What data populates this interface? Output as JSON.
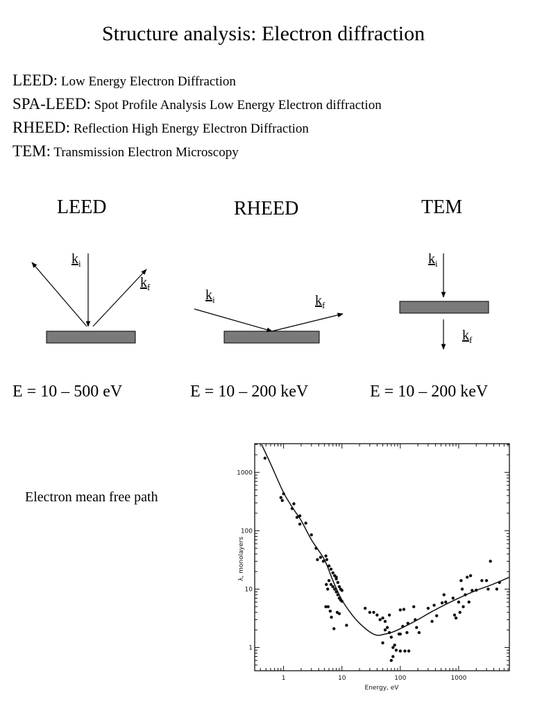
{
  "title": "Structure analysis: Electron diffraction",
  "definitions": [
    {
      "abbr": "LEED",
      "text": "Low Energy Electron Diffraction"
    },
    {
      "abbr": "SPA-LEED",
      "text": "Spot Profile Analysis Low Energy Electron diffraction"
    },
    {
      "abbr": "RHEED",
      "text": "Reflection High Energy Electron Diffraction"
    },
    {
      "abbr": "TEM",
      "text": "Transmission Electron Microscopy"
    }
  ],
  "diagrams": [
    {
      "name": "LEED",
      "ki": "k",
      "ki_sub": "i",
      "kf": "k",
      "kf_sub": "f",
      "energy": "E = 10 – 500 eV"
    },
    {
      "name": "RHEED",
      "ki": "k",
      "ki_sub": "i",
      "kf": "k",
      "kf_sub": "f",
      "energy": "E = 10 – 200 keV"
    },
    {
      "name": "TEM",
      "ki": "k",
      "ki_sub": "i",
      "kf": "k",
      "kf_sub": "f",
      "energy": "E = 10 – 200 keV"
    }
  ],
  "colors": {
    "sample_plate": "#7a7a7a",
    "text": "#000000"
  },
  "mfp_label": "Electron mean free path",
  "chart_data": {
    "type": "scatter",
    "xlabel": "Energy, eV",
    "ylabel": "λ, monolayers",
    "xscale": "log",
    "yscale": "log",
    "xlim": [
      0.32,
      7400
    ],
    "ylim": [
      0.4,
      3100
    ],
    "xticks": [
      {
        "value": 1,
        "label": "1"
      },
      {
        "value": 10,
        "label": "10"
      },
      {
        "value": 100,
        "label": "100"
      },
      {
        "value": 1000,
        "label": "1000"
      }
    ],
    "yticks": [
      {
        "value": 1,
        "label": "1"
      },
      {
        "value": 10,
        "label": "10"
      },
      {
        "value": 100,
        "label": "100"
      },
      {
        "value": 1000,
        "label": "1000"
      }
    ],
    "grid": false,
    "curve": [
      [
        0.42,
        3000
      ],
      [
        0.6,
        1400
      ],
      [
        1,
        450
      ],
      [
        1.5,
        230
      ],
      [
        2,
        150
      ],
      [
        3,
        70
      ],
      [
        5,
        32
      ],
      [
        7,
        14
      ],
      [
        10,
        6.5
      ],
      [
        15,
        3.6
      ],
      [
        20,
        2.6
      ],
      [
        30,
        1.85
      ],
      [
        40,
        1.62
      ],
      [
        55,
        1.7
      ],
      [
        70,
        1.8
      ],
      [
        100,
        2.1
      ],
      [
        200,
        3
      ],
      [
        300,
        3.8
      ],
      [
        500,
        5
      ],
      [
        1000,
        7
      ],
      [
        2000,
        9.5
      ],
      [
        3000,
        11
      ],
      [
        5000,
        13.5
      ],
      [
        7400,
        16
      ]
    ],
    "points": [
      [
        0.48,
        1750
      ],
      [
        0.9,
        370
      ],
      [
        0.95,
        330
      ],
      [
        1.0,
        430
      ],
      [
        1.4,
        240
      ],
      [
        1.5,
        290
      ],
      [
        1.7,
        170
      ],
      [
        1.9,
        180
      ],
      [
        1.9,
        130
      ],
      [
        2.4,
        135
      ],
      [
        3.0,
        85
      ],
      [
        3.6,
        50
      ],
      [
        3.8,
        32
      ],
      [
        4.3,
        35
      ],
      [
        4.8,
        30
      ],
      [
        5.3,
        37
      ],
      [
        5.5,
        32
      ],
      [
        5.4,
        12
      ],
      [
        5.7,
        10
      ],
      [
        5.3,
        5
      ],
      [
        5.8,
        5
      ],
      [
        6.3,
        4.2
      ],
      [
        6.6,
        3.3
      ],
      [
        7.3,
        2.1
      ],
      [
        8.3,
        4
      ],
      [
        9,
        3.8
      ],
      [
        12,
        2.4
      ],
      [
        6,
        25
      ],
      [
        6.5,
        22
      ],
      [
        7,
        19
      ],
      [
        7.5,
        17
      ],
      [
        8,
        15
      ],
      [
        8.5,
        13
      ],
      [
        9,
        11
      ],
      [
        9.5,
        10
      ],
      [
        10,
        9.5
      ],
      [
        6,
        14
      ],
      [
        6.5,
        12
      ],
      [
        7,
        11
      ],
      [
        7.5,
        10
      ],
      [
        8,
        9
      ],
      [
        8.5,
        8
      ],
      [
        9,
        7
      ],
      [
        9.5,
        6.5
      ],
      [
        10,
        6.2
      ],
      [
        8,
        16
      ],
      [
        25,
        4.7
      ],
      [
        30,
        4
      ],
      [
        35,
        4
      ],
      [
        40,
        3.6
      ],
      [
        45,
        3
      ],
      [
        50,
        3.2
      ],
      [
        55,
        2.8
      ],
      [
        50,
        1.2
      ],
      [
        55,
        2
      ],
      [
        60,
        2.2
      ],
      [
        65,
        1.8
      ],
      [
        65,
        3.6
      ],
      [
        70,
        1.5
      ],
      [
        70,
        0.6
      ],
      [
        75,
        0.7
      ],
      [
        75,
        1
      ],
      [
        80,
        1.1
      ],
      [
        85,
        0.9
      ],
      [
        95,
        1.7
      ],
      [
        100,
        1.7
      ],
      [
        100,
        4.4
      ],
      [
        100,
        0.87
      ],
      [
        110,
        2.3
      ],
      [
        115,
        4.5
      ],
      [
        120,
        0.87
      ],
      [
        130,
        1.8
      ],
      [
        135,
        2.6
      ],
      [
        140,
        0.87
      ],
      [
        170,
        5
      ],
      [
        180,
        3
      ],
      [
        190,
        2.2
      ],
      [
        210,
        1.8
      ],
      [
        300,
        4.7
      ],
      [
        350,
        2.8
      ],
      [
        380,
        5.3
      ],
      [
        420,
        3.5
      ],
      [
        520,
        5.8
      ],
      [
        560,
        8
      ],
      [
        600,
        6
      ],
      [
        800,
        7
      ],
      [
        850,
        3.6
      ],
      [
        900,
        3.2
      ],
      [
        1000,
        6
      ],
      [
        1050,
        4
      ],
      [
        1100,
        14
      ],
      [
        1150,
        10
      ],
      [
        1200,
        5
      ],
      [
        1300,
        8
      ],
      [
        1400,
        16
      ],
      [
        1500,
        6
      ],
      [
        1600,
        17
      ],
      [
        1700,
        9.5
      ],
      [
        2000,
        9.6
      ],
      [
        2500,
        14
      ],
      [
        3000,
        14
      ],
      [
        3200,
        10
      ],
      [
        3500,
        30
      ],
      [
        4500,
        10
      ],
      [
        5000,
        13
      ]
    ]
  }
}
